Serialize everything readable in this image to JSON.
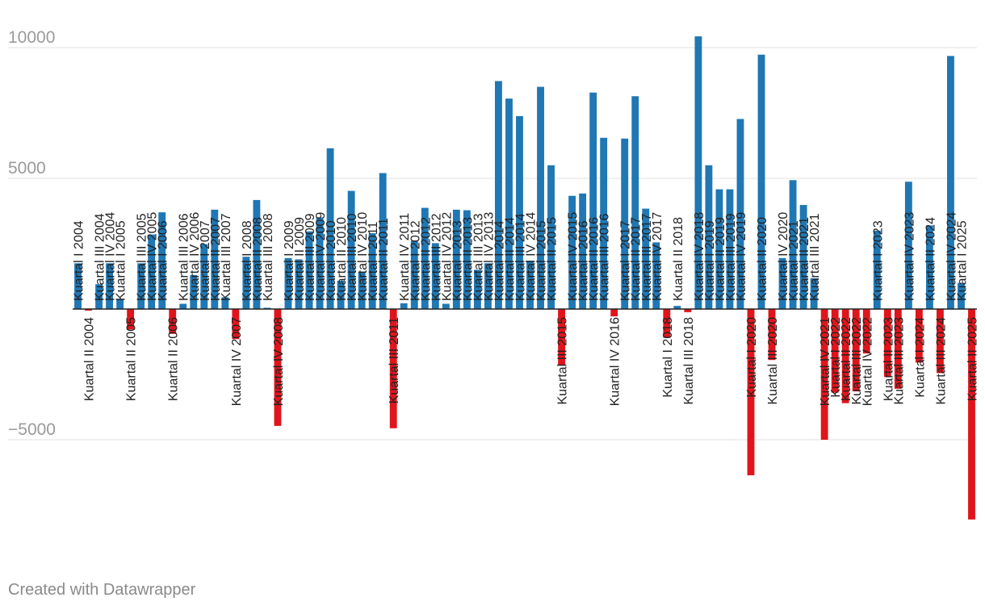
{
  "chart_data": {
    "type": "bar",
    "title": "",
    "xlabel": "",
    "ylabel": "",
    "ylim": [
      -9000,
      10700
    ],
    "yticks": [
      10000,
      5000,
      0,
      -5000
    ],
    "ytick_labels": [
      "10000",
      "5000",
      "",
      "−5000"
    ],
    "colors": {
      "positive": "#1f77b4",
      "negative": "#e0151c",
      "grid": "#e2e2e2",
      "zero_line": "#222222"
    },
    "categories": [
      "Kuartal I 2004",
      "Kuartal II 2004",
      "Kuartal III 2004",
      "Kuartal IV 2004",
      "Kuartal I 2005",
      "Kuartal II 2005",
      "Kuartal III 2005",
      "Kuartal IV 2005",
      "Kuartal I 2006",
      "Kuartal II 2006",
      "Kuartal III 2006",
      "Kuartal IV 2006",
      "Kuartal I 2007",
      "Kuartal II 2007",
      "Kuartal III 2007",
      "Kuartal IV 2007",
      "Kuartal I 2008",
      "Kuartal II 2008",
      "Kuartal III 2008",
      "Kuartal IV 2008",
      "Kuartal I 2009",
      "Kuartal II 2009",
      "Kuartal III 2009",
      "Kuartal IV 2009",
      "Kuartal I 2010",
      "Kuartal II 2010",
      "Kuartal III 2010",
      "Kuartal IV 2010",
      "Kuartal I 2011",
      "Kuartal II 2011",
      "Kuartal III 2011",
      "Kuartal IV 2011",
      "Kuartal I 2012",
      "Kuartal II 2012",
      "Kuartal III 2012",
      "Kuartal IV 2012",
      "Kuartal I 2013",
      "Kuartal II 2013",
      "Kuartal III 2013",
      "Kuartal IV 2013",
      "Kuartal I 2014",
      "Kuartal II 2014",
      "Kuartal III 2014",
      "Kuartal IV 2014",
      "Kuartal I 2015",
      "Kuartal II 2015",
      "Kuartal III 2015",
      "Kuartal IV 2015",
      "Kuartal I 2016",
      "Kuartal II 2016",
      "Kuartal III 2016",
      "Kuartal IV 2016",
      "Kuartal I 2017",
      "Kuartal II 2017",
      "Kuartal III 2017",
      "Kuartal IV 2017",
      "Kuartal I 2018",
      "Kuartal II 2018",
      "Kuartal III 2018",
      "Kuartal IV 2018",
      "Kuartal I 2019",
      "Kuartal II 2019",
      "Kuartal III 2019",
      "Kuartal IV 2019",
      "Kuartal I 2020",
      "Kuartal II 2020",
      "Kuartal III 2020",
      "Kuartal IV 2020",
      "Kuartal I 2021",
      "Kuartal II 2021",
      "Kuartal III 2021",
      "Kuartal IV 2021",
      "Kuartal I 2022",
      "Kuartal II 2022",
      "Kuartal III 2022",
      "Kuartal IV 2022",
      "Kuartal I 2023",
      "Kuartal II 2023",
      "Kuartal III 2023",
      "Kuartal IV 2023",
      "Kuartal I 2024",
      "Kuartal II 2024",
      "Kuartal III 2024",
      "Kuartal IV 2024",
      "Kuartal I 2025",
      "Kuartal II 2025"
    ],
    "values": [
      1750,
      -60,
      950,
      1750,
      380,
      -780,
      1750,
      2850,
      3700,
      -950,
      200,
      1300,
      2480,
      3800,
      450,
      -1150,
      2000,
      4170,
      50,
      -4470,
      1950,
      1900,
      2970,
      3500,
      6150,
      1080,
      4520,
      1430,
      2900,
      5200,
      -4560,
      220,
      2600,
      3870,
      2520,
      200,
      3800,
      3780,
      1500,
      1750,
      8720,
      8050,
      7380,
      1850,
      8500,
      5500,
      -2150,
      4330,
      4420,
      8280,
      6550,
      -280,
      6520,
      8140,
      3840,
      2550,
      -1100,
      120,
      -120,
      10430,
      5500,
      4580,
      4580,
      7270,
      -6360,
      9730,
      -1950,
      1950,
      4930,
      3980,
      1180,
      -5000,
      -3200,
      -3600,
      -3150,
      -1700,
      3000,
      -2600,
      -3050,
      4870,
      -2050,
      3200,
      -2450,
      9680,
      1000,
      -8050
    ]
  },
  "footer": {
    "credit": "Created with Datawrapper"
  }
}
